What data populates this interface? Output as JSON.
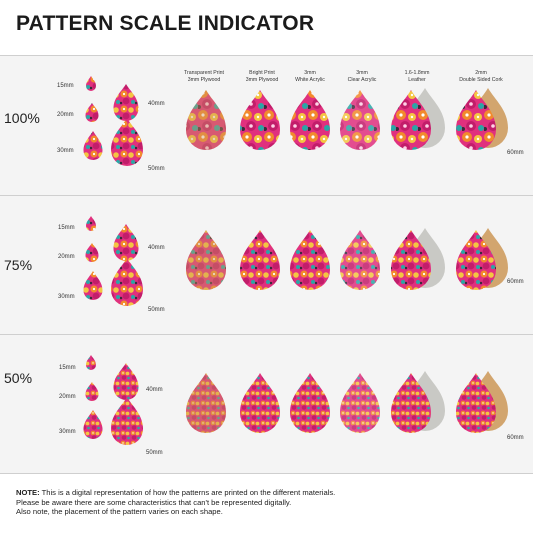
{
  "title": "PATTERN SCALE INDICATOR",
  "sections": [
    {
      "scale": "100%",
      "sizes": {
        "s15": "15mm",
        "s20": "20mm",
        "s30": "30mm",
        "s40": "40mm",
        "s50": "50mm"
      },
      "side_size": "60mm"
    },
    {
      "scale": "75%",
      "sizes": {
        "s15": "15mm",
        "s20": "20mm",
        "s30": "30mm",
        "s40": "40mm",
        "s50": "50mm"
      },
      "side_size": "60mm"
    },
    {
      "scale": "50%",
      "sizes": {
        "s15": "15mm",
        "s20": "20mm",
        "s30": "30mm",
        "s40": "40mm",
        "s50": "50mm"
      },
      "side_size": "60mm"
    }
  ],
  "materials": [
    {
      "line1": "Transparent Print",
      "line2": "3mm Plywood"
    },
    {
      "line1": "Bright Print",
      "line2": "3mm Plywood"
    },
    {
      "line1": "3mm",
      "line2": "White Acrylic"
    },
    {
      "line1": "3mm",
      "line2": "Clear Acrylic"
    },
    {
      "line1": "1.6-1.8mm",
      "line2": "Leather"
    },
    {
      "line1": "2mm",
      "line2": "Double Sided Cork"
    }
  ],
  "note": {
    "label": "NOTE:",
    "line1": "This is a digital representation of how the patterns are printed on the different materials.",
    "line2": "Please be aware there are some characteristics that can't be represented digitally.",
    "line3": "Also note, the placement of the pattern varies on each shape."
  },
  "colors": {
    "pink": "#e0307e",
    "magenta": "#c21d6a",
    "orange": "#f28a2c",
    "yellow": "#f4c542",
    "teal": "#2aa6a6",
    "wood": "#c99660",
    "leather": "#c9c9c5",
    "cork": "#d2a56e"
  }
}
